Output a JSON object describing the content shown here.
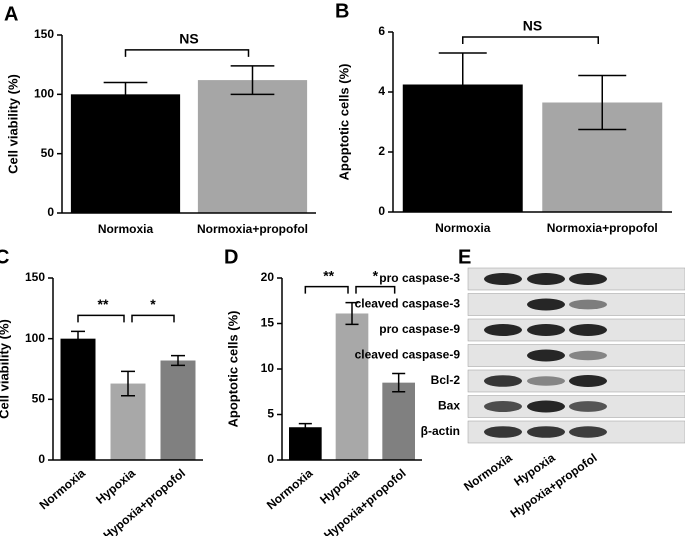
{
  "chart_data": [
    {
      "type": "bar",
      "panel_label": "A",
      "ylabel": "Cell viability (%)",
      "categories": [
        "Normoxia",
        "Normoxia+propofol"
      ],
      "values": [
        100,
        112
      ],
      "errors": [
        10,
        12
      ],
      "colors": [
        "#000000",
        "#a6a6a6"
      ],
      "ylim": [
        0,
        150
      ],
      "yticks": [
        0,
        50,
        100,
        150
      ],
      "brackets": [
        {
          "label": "NS",
          "categories": [
            0,
            1
          ]
        }
      ]
    },
    {
      "type": "bar",
      "panel_label": "B",
      "ylabel": "Apoptotic cells (%)",
      "categories": [
        "Normoxia",
        "Normoxia+propofol"
      ],
      "values": [
        4.25,
        3.65
      ],
      "errors": [
        1.05,
        0.9
      ],
      "colors": [
        "#000000",
        "#a6a6a6"
      ],
      "ylim": [
        0,
        6
      ],
      "yticks": [
        0,
        2,
        4,
        6
      ],
      "brackets": [
        {
          "label": "NS",
          "categories": [
            0,
            1
          ]
        }
      ]
    },
    {
      "type": "bar",
      "panel_label": "C",
      "ylabel": "Cell viability (%)",
      "categories": [
        "Normoxia",
        "Hypoxia",
        "Hypoxia+propofol"
      ],
      "values": [
        100,
        63,
        82
      ],
      "errors": [
        6,
        10,
        4
      ],
      "colors": [
        "#000000",
        "#a8a8a8",
        "#808080"
      ],
      "ylim": [
        0,
        150
      ],
      "yticks": [
        0,
        50,
        100,
        150
      ],
      "brackets": [
        {
          "label": "**",
          "categories": [
            0,
            1
          ]
        },
        {
          "label": "*",
          "categories": [
            1,
            2
          ]
        }
      ]
    },
    {
      "type": "bar",
      "panel_label": "D",
      "ylabel": "Apoptotic cells (%)",
      "categories": [
        "Normoxia",
        "Hypoxia",
        "Hypoxia+propofol"
      ],
      "values": [
        3.6,
        16.1,
        8.5
      ],
      "errors": [
        0.4,
        1.2,
        1.0
      ],
      "colors": [
        "#000000",
        "#a8a8a8",
        "#808080"
      ],
      "ylim": [
        0,
        20
      ],
      "yticks": [
        0,
        5,
        10,
        15,
        20
      ],
      "brackets": [
        {
          "label": "**",
          "categories": [
            0,
            1
          ]
        },
        {
          "label": "*",
          "categories": [
            1,
            2
          ]
        }
      ]
    }
  ],
  "blot": {
    "panel_label": "E",
    "rows": [
      "pro caspase-3",
      "cleaved caspase-3",
      "pro caspase-9",
      "cleaved caspase-9",
      "Bcl-2",
      "Bax",
      "β-actin"
    ],
    "columns": [
      "Normoxia",
      "Hypoxia",
      "Hypoxia+propofol"
    ]
  }
}
